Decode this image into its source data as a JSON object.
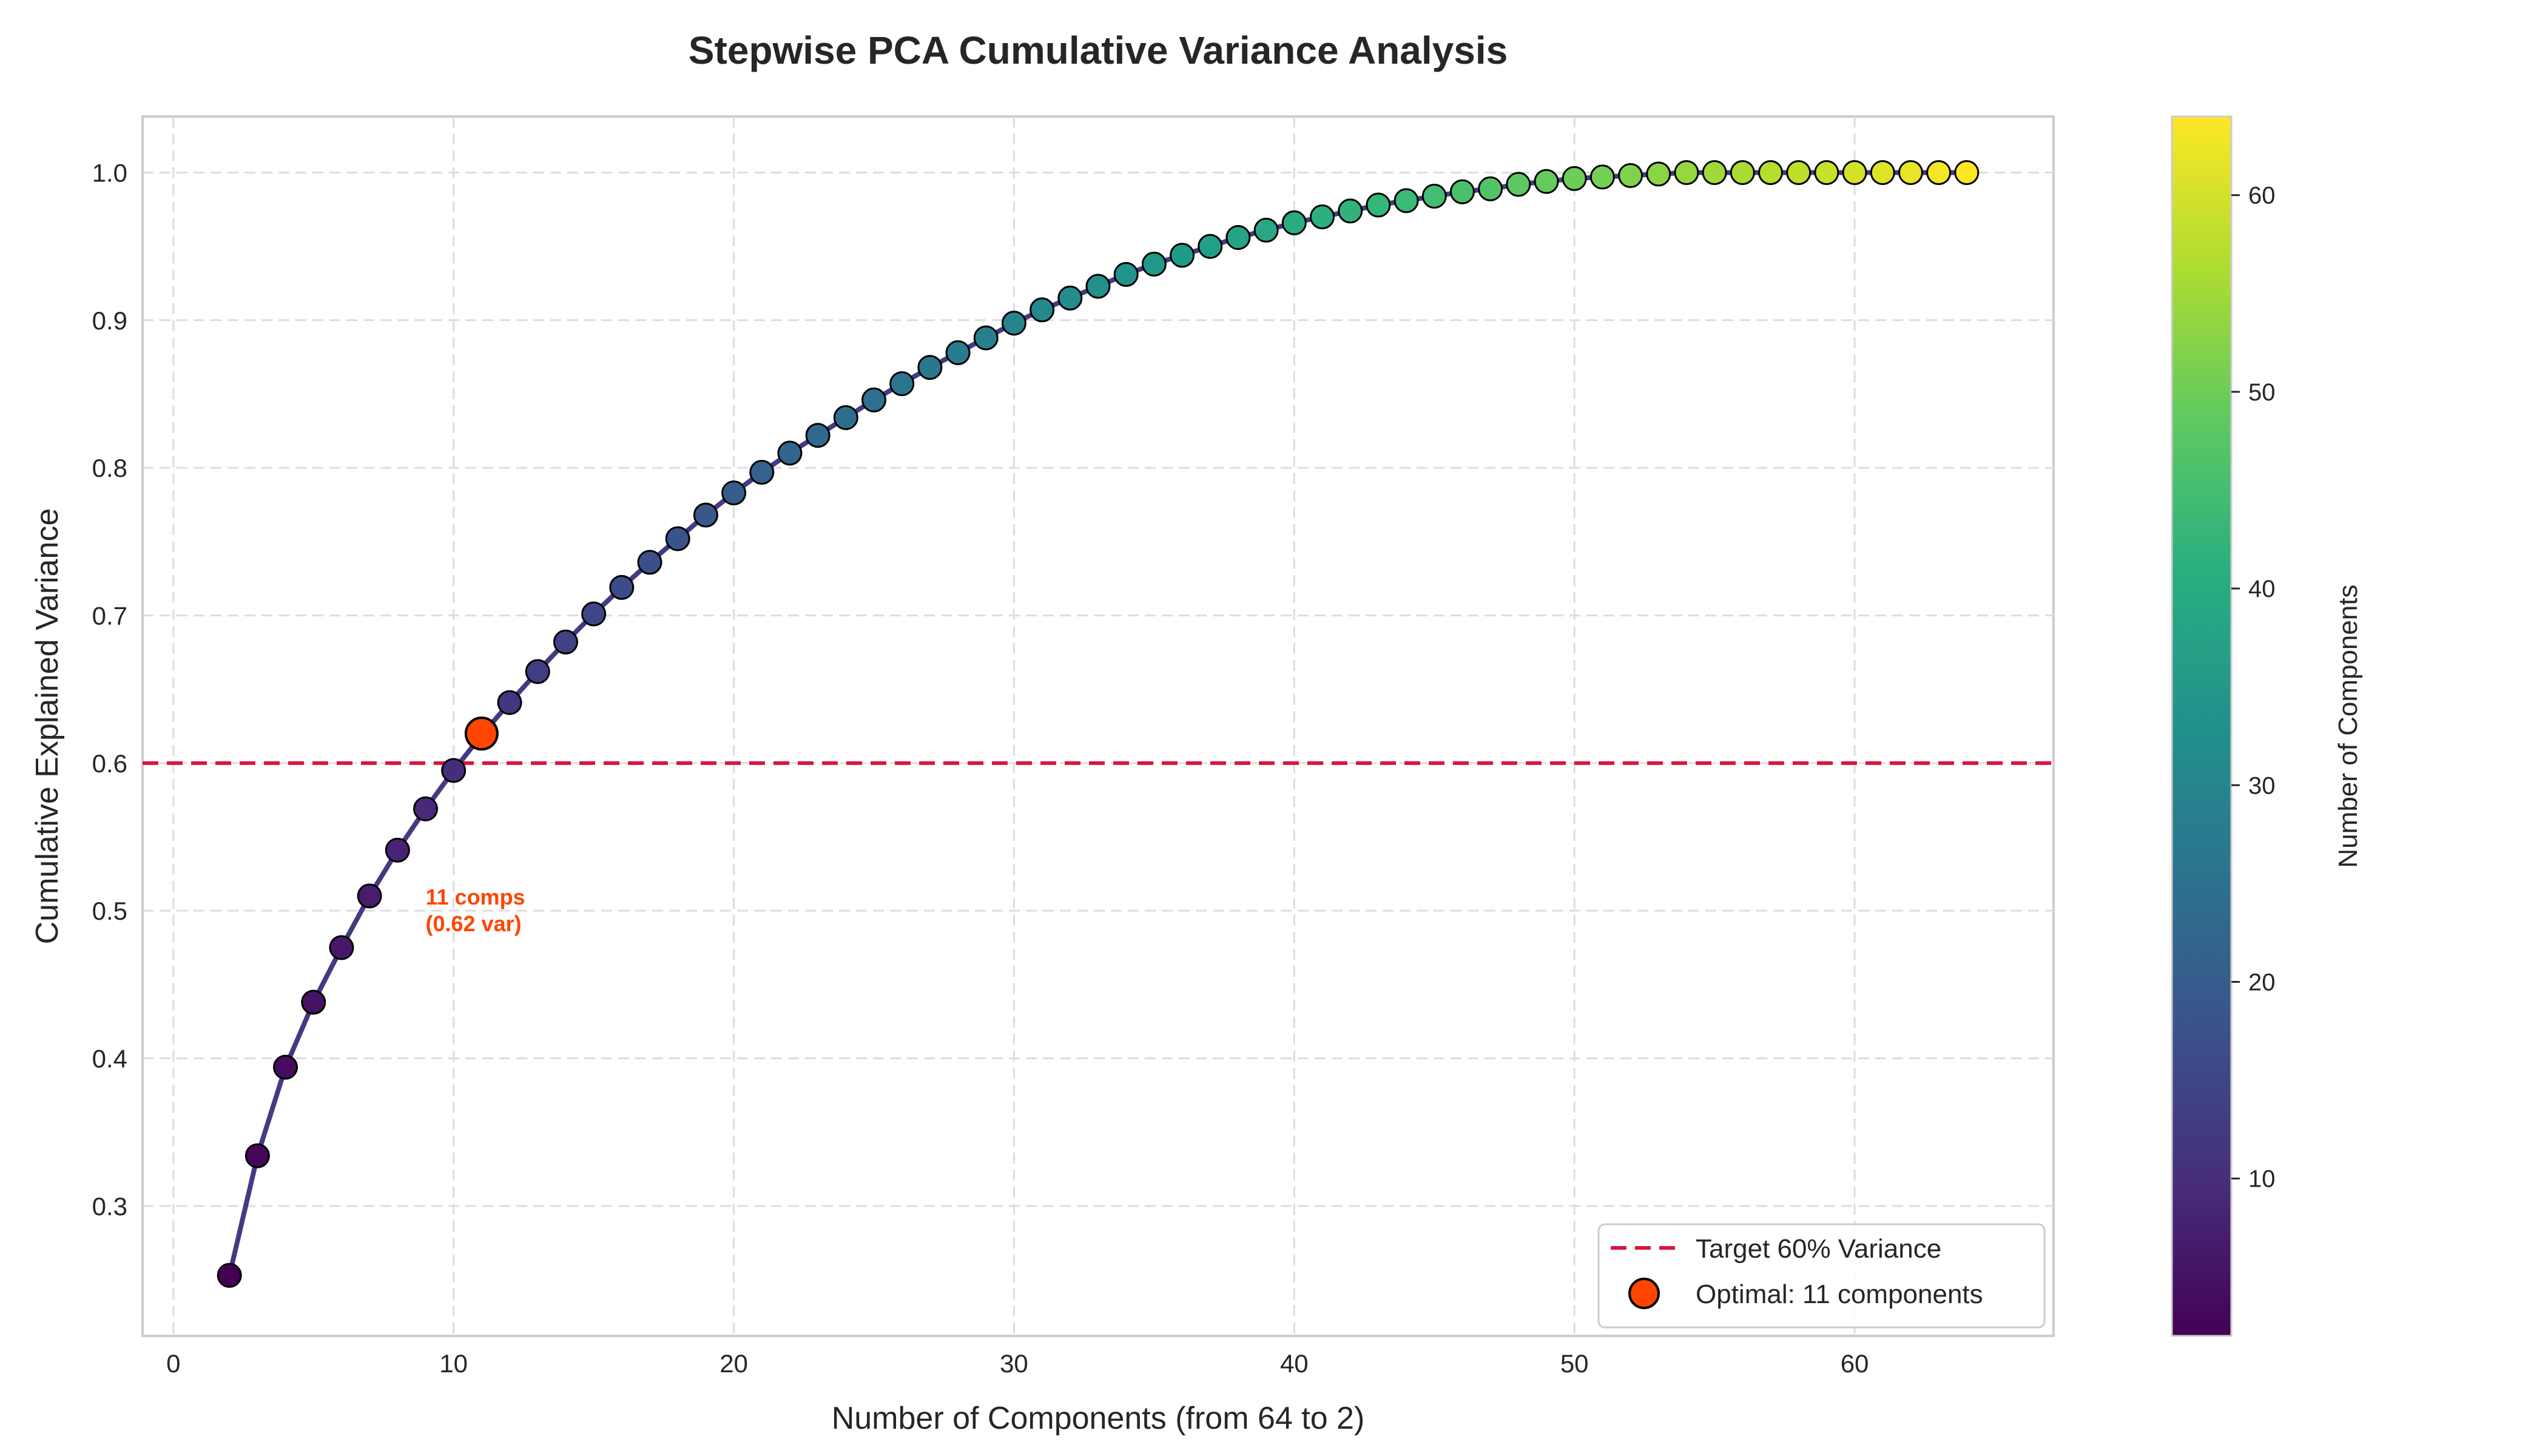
{
  "chart_data": {
    "type": "scatter",
    "title": "Stepwise PCA Cumulative Variance Analysis",
    "xlabel": "Number of Components (from 64 to 2)",
    "ylabel": "Cumulative Explained Variance",
    "xlim": [
      -1.1,
      67.1
    ],
    "ylim": [
      0.212,
      1.038
    ],
    "x_ticks": [
      0,
      10,
      20,
      30,
      40,
      50,
      60
    ],
    "y_ticks": [
      0.3,
      0.4,
      0.5,
      0.6,
      0.7,
      0.8,
      0.9,
      1.0
    ],
    "x_tick_labels": [
      "0",
      "10",
      "20",
      "30",
      "40",
      "50",
      "60"
    ],
    "y_tick_labels": [
      "0.3",
      "0.4",
      "0.5",
      "0.6",
      "0.7",
      "0.8",
      "0.9",
      "1.0"
    ],
    "grid": true,
    "line_color": "#443a83",
    "series": [
      {
        "x": [
          2,
          3,
          4,
          5,
          6,
          7,
          8,
          9,
          10,
          11,
          12,
          13,
          14,
          15,
          16,
          17,
          18,
          19,
          20,
          21,
          22,
          23,
          24,
          25,
          26,
          27,
          28,
          29,
          30,
          31,
          32,
          33,
          34,
          35,
          36,
          37,
          38,
          39,
          40,
          41,
          42,
          43,
          44,
          45,
          46,
          47,
          48,
          49,
          50,
          51,
          52,
          53,
          54,
          55,
          56,
          57,
          58,
          59,
          60,
          61,
          62,
          63,
          64
        ],
        "y": [
          0.253,
          0.334,
          0.394,
          0.438,
          0.475,
          0.51,
          0.541,
          0.569,
          0.595,
          0.619,
          0.641,
          0.662,
          0.682,
          0.701,
          0.719,
          0.736,
          0.752,
          0.768,
          0.783,
          0.797,
          0.81,
          0.822,
          0.834,
          0.846,
          0.857,
          0.868,
          0.878,
          0.888,
          0.898,
          0.907,
          0.915,
          0.923,
          0.931,
          0.938,
          0.944,
          0.95,
          0.956,
          0.961,
          0.966,
          0.97,
          0.974,
          0.978,
          0.981,
          0.984,
          0.987,
          0.989,
          0.992,
          0.994,
          0.996,
          0.997,
          0.998,
          0.999,
          1.0,
          1.0,
          1.0,
          1.0,
          1.0,
          1.0,
          1.0,
          1.0,
          1.0,
          1.0,
          1.0
        ]
      }
    ],
    "target_line": {
      "y": 0.6,
      "color": "#dc143c",
      "label": "Target 60% Variance"
    },
    "optimal": {
      "x": 11,
      "y": 0.62,
      "color": "#ff4500",
      "label": "Optimal: 11 components"
    },
    "annotation": {
      "line1": "11 comps",
      "line2": "(0.62 var)",
      "x": 9,
      "y": 0.5,
      "color": "#ff4500"
    },
    "legend_position": "lower-right",
    "colorbar": {
      "label": "Number of Components",
      "range": [
        2,
        64
      ],
      "ticks": [
        10,
        20,
        30,
        40,
        50,
        60
      ],
      "tick_labels": [
        "10",
        "20",
        "30",
        "40",
        "50",
        "60"
      ],
      "colormap": "viridis"
    }
  }
}
